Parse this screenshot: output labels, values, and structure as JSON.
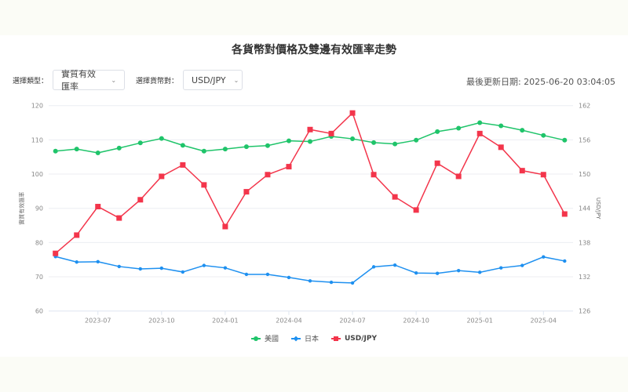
{
  "header": {
    "title": "各貨幣對價格及雙邊有效匯率走勢"
  },
  "controls": {
    "type_label": "選擇類型：",
    "type_value": "實質有效匯率",
    "pair_label": "選擇貨幣對：",
    "pair_value": "USD/JPY",
    "chevron_icon": "chevron-down-icon"
  },
  "status": {
    "last_updated": "最後更新日期: 2025-06-20 03:04:05"
  },
  "colors": {
    "us": "#1fc46a",
    "jp": "#1e90f0",
    "usdjpy": "#f3354b",
    "grid": "#eceef2",
    "axis": "#dfe6f0"
  },
  "legend": [
    {
      "label": "美國",
      "color": "#1fc46a",
      "marker": "circle"
    },
    {
      "label": "日本",
      "color": "#1e90f0",
      "marker": "diamond"
    },
    {
      "label": "USD/JPY",
      "color": "#f3354b",
      "marker": "square"
    }
  ],
  "chart_data": {
    "type": "line",
    "title": "各貨幣對價格及雙邊有效匯率走勢",
    "x": [
      "2023-05",
      "2023-06",
      "2023-07",
      "2023-08",
      "2023-09",
      "2023-10",
      "2023-11",
      "2023-12",
      "2024-01",
      "2024-02",
      "2024-03",
      "2024-04",
      "2024-05",
      "2024-06",
      "2024-07",
      "2024-08",
      "2024-09",
      "2024-10",
      "2024-11",
      "2024-12",
      "2025-01",
      "2025-02",
      "2025-03",
      "2025-04",
      "2025-05"
    ],
    "x_tick_labels": [
      "2023-07",
      "2023-10",
      "2024-01",
      "2024-04",
      "2024-07",
      "2024-10",
      "2025-01",
      "2025-04"
    ],
    "ylabel_left": "實質有效匯率",
    "ylabel_right": "USD/JPY",
    "ylim_left": [
      60,
      120
    ],
    "yticks_left": [
      60,
      70,
      80,
      90,
      100,
      110,
      120
    ],
    "ylim_right": [
      126,
      162
    ],
    "yticks_right": [
      126,
      132,
      138,
      144,
      150,
      156,
      162
    ],
    "grid": true,
    "legend_position": "bottom",
    "series": [
      {
        "name": "美國",
        "axis": "left",
        "values": [
          106.7,
          107.3,
          106.2,
          107.6,
          109.1,
          110.4,
          108.4,
          106.7,
          107.3,
          108.0,
          108.3,
          109.7,
          109.5,
          111.0,
          110.3,
          109.2,
          108.8,
          109.9,
          112.4,
          113.4,
          115.0,
          114.1,
          112.8,
          111.3,
          109.9
        ]
      },
      {
        "name": "日本",
        "axis": "left",
        "values": [
          75.9,
          74.3,
          74.4,
          73.0,
          72.3,
          72.5,
          71.4,
          73.3,
          72.6,
          70.7,
          70.7,
          69.8,
          68.8,
          68.4,
          68.2,
          72.9,
          73.4,
          71.1,
          71.0,
          71.8,
          71.3,
          72.6,
          73.3,
          75.8,
          74.6
        ]
      },
      {
        "name": "USD/JPY",
        "axis": "right",
        "values": [
          136.1,
          139.3,
          144.3,
          142.3,
          145.5,
          149.6,
          151.6,
          148.1,
          140.8,
          146.9,
          149.9,
          151.3,
          157.8,
          157.1,
          160.7,
          149.9,
          146.0,
          143.7,
          151.9,
          149.6,
          157.1,
          154.7,
          150.6,
          149.9,
          143.0
        ]
      }
    ]
  }
}
